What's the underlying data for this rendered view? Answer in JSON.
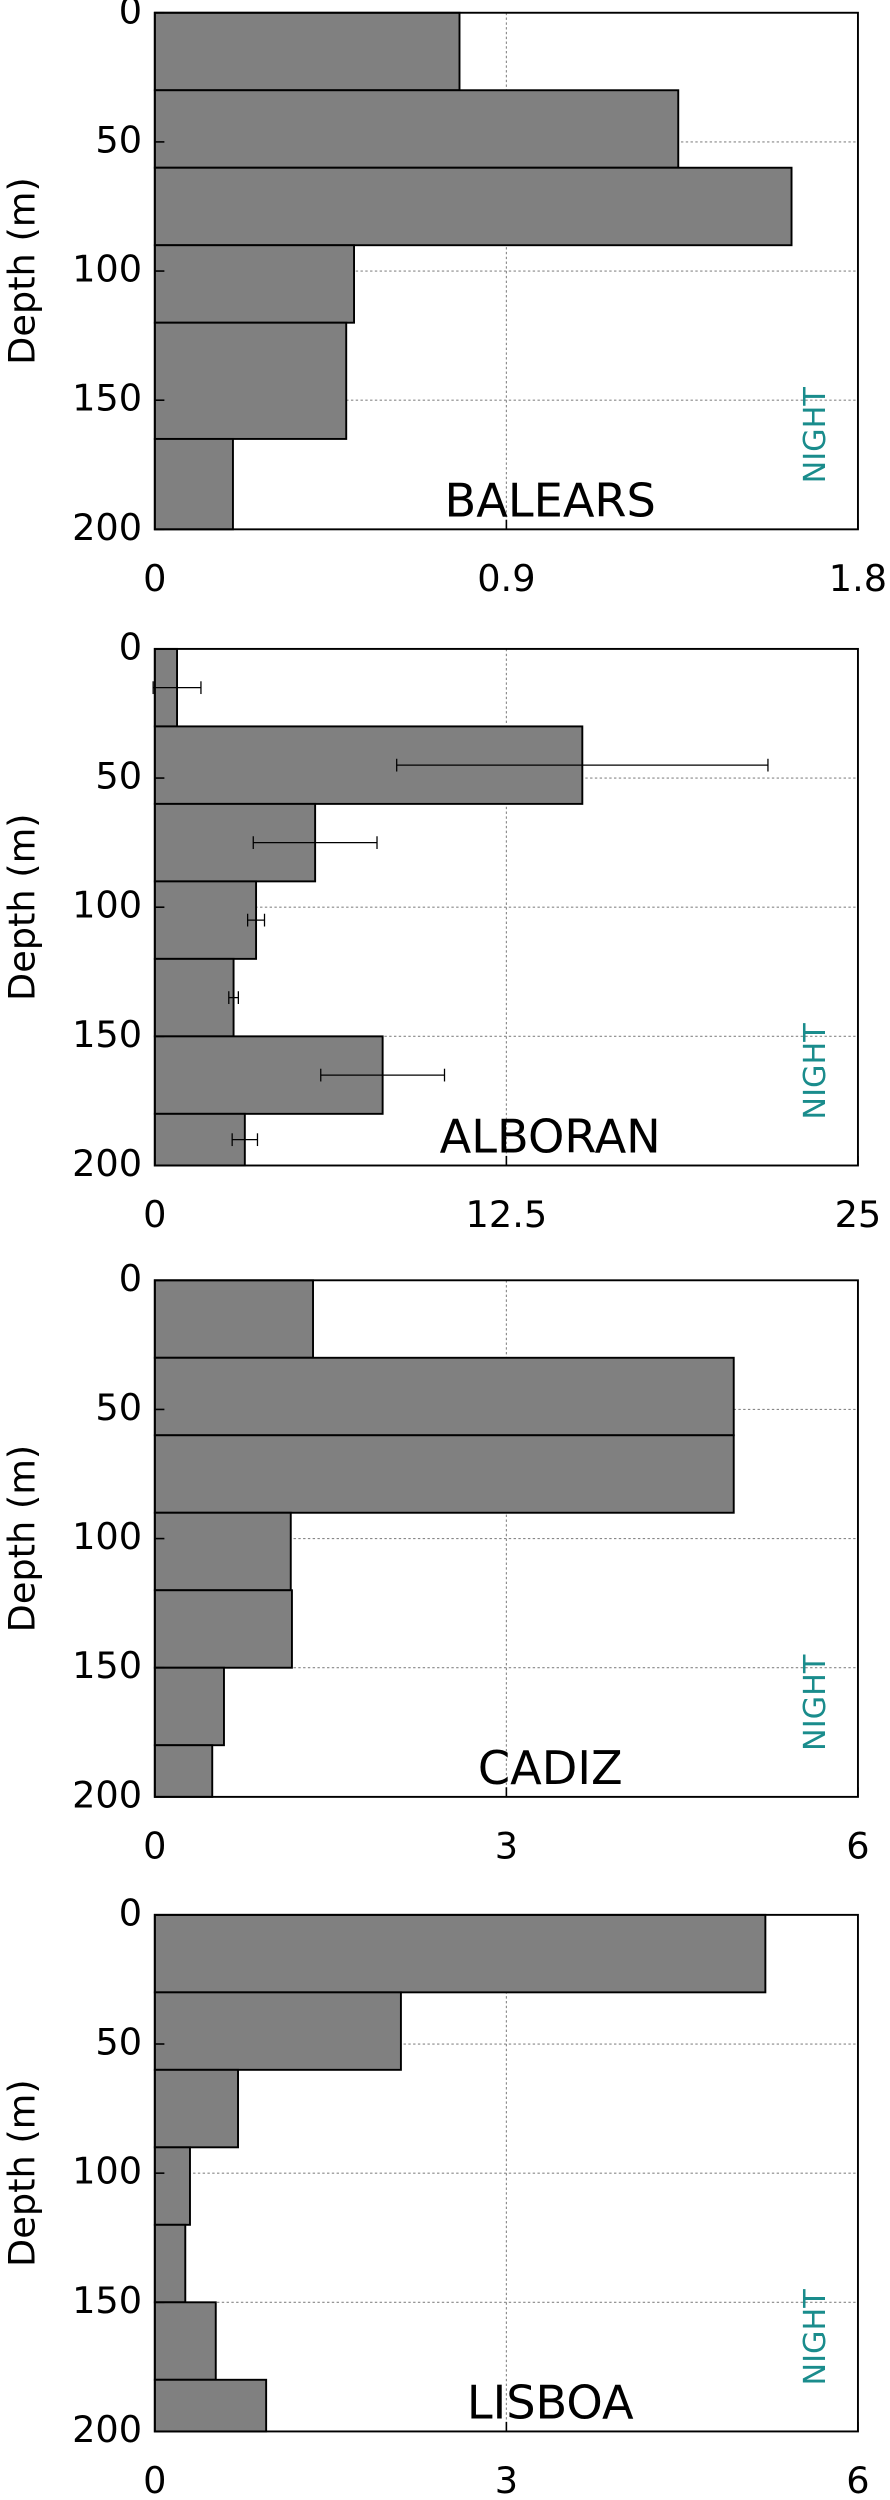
{
  "chart_data": [
    {
      "type": "histogram",
      "orientation": "horizontal",
      "title": "BALEARS",
      "annotation": "NIGHT",
      "ylabel": "Depth (m)",
      "bins": [
        0,
        30,
        60,
        90,
        120,
        165,
        200
      ],
      "counts": [
        0.78,
        1.34,
        1.63,
        0.51,
        0.49,
        0.2
      ],
      "xlim": [
        0,
        1.8
      ],
      "xticks": [
        0,
        0.9,
        1.8
      ],
      "ylim": [
        0,
        200
      ],
      "yticks": [
        0,
        50,
        100,
        150,
        200
      ],
      "y_inverted": true,
      "color": "#808080",
      "annotation_color": "#1a8c8c",
      "grid": true
    },
    {
      "type": "histogram",
      "orientation": "horizontal",
      "title": "ALBORAN",
      "annotation": "NIGHT",
      "ylabel": "Depth (m)",
      "bins": [
        0,
        30,
        60,
        90,
        120,
        150,
        180,
        200
      ],
      "counts": [
        0.79,
        15.2,
        5.7,
        3.6,
        2.8,
        8.1,
        3.2
      ],
      "errors": [
        0.85,
        6.6,
        2.2,
        0.3,
        0.17,
        2.2,
        0.45
      ],
      "xlim": [
        0,
        25
      ],
      "xticks": [
        0,
        12.5,
        25
      ],
      "ylim": [
        0,
        200
      ],
      "yticks": [
        0,
        50,
        100,
        150,
        200
      ],
      "y_inverted": true,
      "color": "#808080",
      "annotation_color": "#1a8c8c",
      "grid": true
    },
    {
      "type": "histogram",
      "orientation": "horizontal",
      "title": "CADIZ",
      "annotation": "NIGHT",
      "ylabel": "Depth (m)",
      "bins": [
        0,
        30,
        60,
        90,
        120,
        150,
        180,
        200
      ],
      "counts": [
        1.35,
        4.94,
        4.94,
        1.16,
        1.17,
        0.59,
        0.49
      ],
      "xlim": [
        0,
        6
      ],
      "xticks": [
        0,
        3,
        6
      ],
      "ylim": [
        0,
        200
      ],
      "yticks": [
        0,
        50,
        100,
        150,
        200
      ],
      "y_inverted": true,
      "color": "#808080",
      "annotation_color": "#1a8c8c",
      "grid": true
    },
    {
      "type": "histogram",
      "orientation": "horizontal",
      "title": "LISBOA",
      "annotation": "NIGHT",
      "ylabel": "Depth (m)",
      "bins": [
        0,
        30,
        60,
        90,
        120,
        150,
        180,
        200
      ],
      "counts": [
        5.21,
        2.1,
        0.71,
        0.3,
        0.26,
        0.52,
        0.95
      ],
      "xlim": [
        0,
        6
      ],
      "xticks": [
        0,
        3,
        6
      ],
      "ylim": [
        0,
        200
      ],
      "yticks": [
        0,
        50,
        100,
        150,
        200
      ],
      "y_inverted": true,
      "color": "#808080",
      "annotation_color": "#1a8c8c",
      "grid": true
    }
  ]
}
